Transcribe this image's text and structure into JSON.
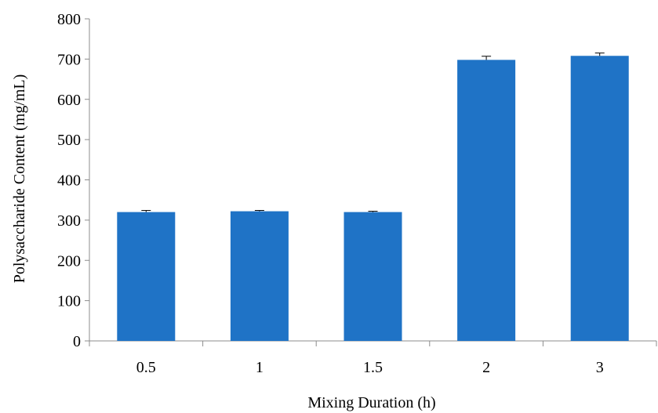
{
  "chart_data": {
    "type": "bar",
    "title": "",
    "xlabel": "Mixing Duration (h)",
    "ylabel": "Polysaccharide Content (mg/mL)",
    "categories": [
      "0.5",
      "1",
      "1.5",
      "2",
      "3"
    ],
    "values": [
      320,
      322,
      320,
      698,
      708
    ],
    "error": [
      4,
      2,
      2,
      9,
      7
    ],
    "ylim": [
      0,
      800
    ],
    "yticks": [
      0,
      100,
      200,
      300,
      400,
      500,
      600,
      700,
      800
    ],
    "grid": false,
    "legend": "none",
    "bar_color": "#1f73c6"
  }
}
